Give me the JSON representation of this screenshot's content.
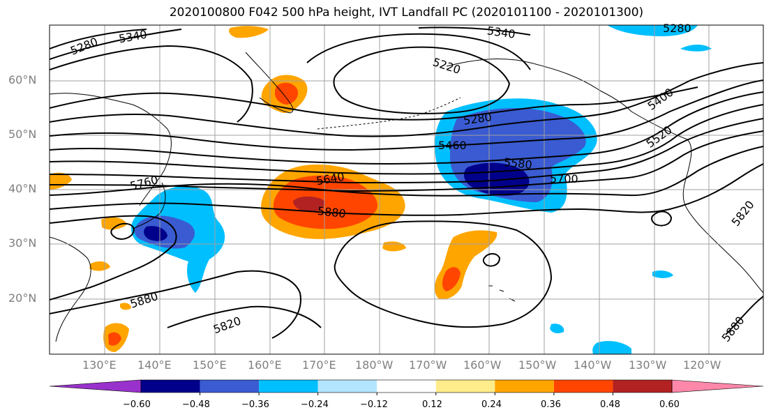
{
  "title": "2020100800 F042 500 hPa height, IVT Landfall PC (2020101100 - 2020101300)",
  "lat_labels": [
    "60°N",
    "50°N",
    "40°N",
    "30°N",
    "20°N"
  ],
  "lon_labels": [
    "130°E",
    "140°E",
    "150°E",
    "160°E",
    "170°E",
    "180°W",
    "170°W",
    "160°W",
    "150°W",
    "140°W",
    "130°W",
    "120°W"
  ],
  "contour_labels": [
    "5280",
    "5340",
    "5340",
    "5280",
    "5220",
    "5280",
    "5460",
    "5580",
    "5700",
    "5640",
    "5760",
    "5880",
    "5880",
    "5820",
    "5400",
    "5520",
    "5820",
    "5880"
  ],
  "colorbar": {
    "tick_labels": [
      "−0.60",
      "−0.48",
      "−0.36",
      "−0.24",
      "−0.12",
      "0.12",
      "0.24",
      "0.36",
      "0.48",
      "0.60"
    ],
    "colors": [
      "#9932cc",
      "#00008b",
      "#3a5bd1",
      "#00bfff",
      "#b3e5ff",
      "#ffffff",
      "#ffec8b",
      "#ffa500",
      "#ff4500",
      "#b22222",
      "#ff88aa"
    ]
  },
  "colors": {
    "neg_strong": "#00008b",
    "neg_mid": "#3a5bd1",
    "neg_light": "#00bfff",
    "pos_light": "#ffa500",
    "pos_mid": "#ff4500",
    "pos_strong": "#b22222"
  }
}
